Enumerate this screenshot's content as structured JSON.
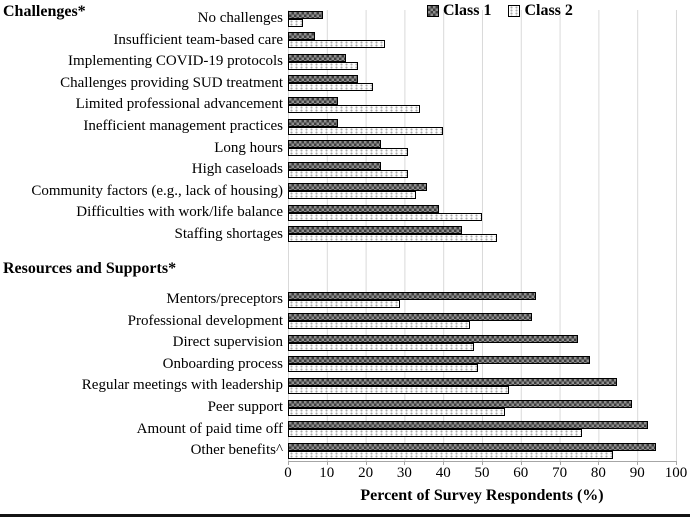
{
  "chart_data": {
    "type": "bar",
    "orientation": "horizontal",
    "xlabel": "Percent of Survey Respondents (%)",
    "xlim": [
      0,
      100
    ],
    "xticks": [
      0,
      10,
      20,
      30,
      40,
      50,
      60,
      70,
      80,
      90,
      100
    ],
    "grid": true,
    "legend_position": "top",
    "legend": [
      {
        "name": "Class 1",
        "pattern": "dark-checkerboard",
        "color": "#5f5f5f"
      },
      {
        "name": "Class 2",
        "pattern": "white-dotted",
        "color": "#ffffff"
      }
    ],
    "sections": [
      {
        "title": "Challenges*",
        "rows": [
          {
            "label": "No challenges",
            "class1": 9,
            "class2": 4
          },
          {
            "label": "Insufficient team-based care",
            "class1": 7,
            "class2": 25
          },
          {
            "label": "Implementing COVID-19 protocols",
            "class1": 15,
            "class2": 18
          },
          {
            "label": "Challenges providing SUD treatment",
            "class1": 18,
            "class2": 22
          },
          {
            "label": "Limited professional advancement",
            "class1": 13,
            "class2": 34
          },
          {
            "label": "Inefficient management practices",
            "class1": 13,
            "class2": 40
          },
          {
            "label": "Long hours",
            "class1": 24,
            "class2": 31
          },
          {
            "label": "High caseloads",
            "class1": 24,
            "class2": 31
          },
          {
            "label": "Community factors (e.g., lack of housing)",
            "class1": 36,
            "class2": 33
          },
          {
            "label": "Difficulties with work/life balance",
            "class1": 39,
            "class2": 50
          },
          {
            "label": "Staffing shortages",
            "class1": 45,
            "class2": 54
          }
        ]
      },
      {
        "title": "Resources and Supports*",
        "rows": [
          {
            "label": "Mentors/preceptors",
            "class1": 64,
            "class2": 29
          },
          {
            "label": "Professional development",
            "class1": 63,
            "class2": 47
          },
          {
            "label": "Direct supervision",
            "class1": 75,
            "class2": 48
          },
          {
            "label": "Onboarding process",
            "class1": 78,
            "class2": 49
          },
          {
            "label": "Regular meetings with leadership",
            "class1": 85,
            "class2": 57
          },
          {
            "label": "Peer support",
            "class1": 89,
            "class2": 56
          },
          {
            "label": "Amount of paid time off",
            "class1": 93,
            "class2": 76
          },
          {
            "label": "Other benefits^",
            "class1": 95,
            "class2": 84
          }
        ]
      }
    ],
    "colors": {
      "gridline": "#d9d9d9",
      "axis": "#a6a6a6",
      "text": "#000000"
    }
  }
}
